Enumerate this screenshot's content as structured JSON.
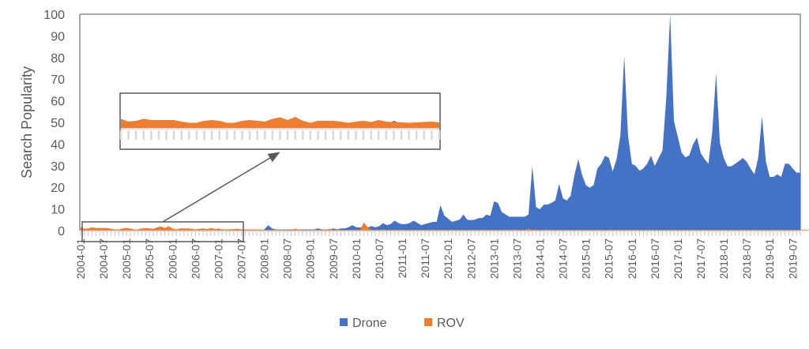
{
  "chart_data": {
    "type": "area",
    "ylabel": "Search Popularity",
    "xlabel": "",
    "ylim": [
      0,
      100
    ],
    "yticks": [
      0,
      10,
      20,
      30,
      40,
      50,
      60,
      70,
      80,
      90,
      100
    ],
    "x_start": "2004-01",
    "x_end": "2019-09",
    "x_interval": "monthly",
    "xtick_labels": [
      "2004-01",
      "2004-07",
      "2005-01",
      "2005-07",
      "2006-01",
      "2006-07",
      "2007-01",
      "2007-07",
      "2008-01",
      "2008-07",
      "2009-01",
      "2009-07",
      "2010-01",
      "2010-07",
      "2011-01",
      "2011-07",
      "2012-01",
      "2012-07",
      "2013-01",
      "2013-07",
      "2014-01",
      "2014-07",
      "2015-01",
      "2015-07",
      "2016-01",
      "2016-07",
      "2017-01",
      "2017-07",
      "2018-01",
      "2018-07",
      "2019-01",
      "2019-07"
    ],
    "legend_position": "bottom",
    "grid": false,
    "series": [
      {
        "name": "Drone",
        "color": "#4472C4",
        "values": [
          0,
          0,
          0,
          0,
          0,
          0,
          0,
          0,
          0,
          0,
          0,
          0,
          0,
          0,
          0,
          0,
          0,
          0,
          0,
          0,
          0,
          0,
          0,
          0,
          0,
          0,
          0,
          0,
          0,
          0,
          0,
          0,
          0,
          0,
          0,
          0,
          1,
          0.3,
          0,
          0,
          0,
          0,
          0,
          0,
          0,
          0,
          0,
          0,
          0.5,
          2.5,
          1,
          0.5,
          0.5,
          0.5,
          0.5,
          0.5,
          0.5,
          0.5,
          0.5,
          0.5,
          0.5,
          0.5,
          1,
          0.5,
          0.5,
          0.5,
          1,
          0.5,
          1,
          1,
          1.5,
          2.5,
          1.5,
          1.5,
          1.5,
          1.5,
          2,
          1.5,
          2,
          3.4,
          2.5,
          3,
          4.6,
          3.5,
          2.9,
          3,
          3.5,
          4.6,
          3.5,
          2.5,
          3,
          3.5,
          4,
          4,
          11.7,
          7,
          5.5,
          4,
          4.5,
          5,
          7.4,
          5,
          4.8,
          5,
          5.8,
          5.8,
          7.4,
          6.8,
          13.5,
          12.8,
          8.6,
          7.5,
          6.4,
          6.4,
          6.4,
          6.4,
          6.4,
          7.4,
          29.7,
          10.7,
          9.9,
          12,
          12,
          12.8,
          13.9,
          21.6,
          14.9,
          13.9,
          16.1,
          25.7,
          33,
          25.7,
          21,
          19.8,
          21,
          28.7,
          30.9,
          34.6,
          33.6,
          27.3,
          33,
          43.9,
          80.8,
          43.9,
          30.9,
          29.9,
          27.7,
          28.7,
          30.9,
          34.6,
          29.9,
          33.6,
          37,
          61.6,
          100,
          50.6,
          43.3,
          36,
          33.8,
          34.8,
          39.9,
          43,
          35.8,
          33,
          30.9,
          45.7,
          72.7,
          40.5,
          33.6,
          29.7,
          29.7,
          30.9,
          32.1,
          33.6,
          31.8,
          28.7,
          26,
          33.6,
          52.8,
          32.1,
          24.8,
          24.8,
          26,
          24.8,
          30.9,
          30.9,
          28.7,
          26.8,
          26.8
        ]
      },
      {
        "name": "ROV",
        "color": "#ED7D31",
        "values": [
          1.5,
          0.8,
          1,
          1.5,
          1.2,
          1.2,
          1.2,
          1.2,
          0.8,
          0.5,
          0.5,
          1,
          1.2,
          1,
          0.5,
          0.5,
          1,
          1.2,
          1,
          0.8,
          1.5,
          1.9,
          1.2,
          2,
          1,
          0.5,
          1,
          1,
          1,
          0.8,
          0.5,
          0.8,
          1,
          0.7,
          1.2,
          0.8,
          0.7,
          0.6,
          0.5,
          0.6,
          0.7,
          0.8,
          0.6,
          0.5,
          0.5,
          0.5,
          0.5,
          0.5,
          0.3,
          0.3,
          0.3,
          0.3,
          0.3,
          0.3,
          0.3,
          0.3,
          0.8,
          0.3,
          0.3,
          0.3,
          0.3,
          0.3,
          0.3,
          0.3,
          0.3,
          0.8,
          0.3,
          0.3,
          0.3,
          0.3,
          0.3,
          0.3,
          0.3,
          0.3,
          3.8,
          1.5,
          0.3,
          0.3,
          0.3,
          0.5,
          0.3,
          0.3,
          0.3,
          0.3,
          0.3,
          0.3,
          0.3,
          0.3,
          0.3,
          0.3,
          0.3,
          0.3,
          0.3,
          0.3,
          0.3,
          0.3,
          0.3,
          0.3,
          0.3,
          0.3,
          0.3,
          0.3,
          0.3,
          0.3,
          0.3,
          0.3,
          0.3,
          0.3,
          0.3,
          0.3,
          0.3,
          0.3,
          0.3,
          0.3,
          0.5,
          0.3,
          0.3,
          0.8,
          0.3,
          0.5,
          0.3,
          0.3,
          0.5,
          0.3,
          0.3,
          0.3,
          0.3,
          0.3,
          0.3,
          0.3,
          0.3,
          0.3,
          0.3,
          0.3,
          0.3,
          0.3,
          0.3,
          0.3,
          0.3,
          0.3,
          0.3,
          0.3,
          0.3,
          0.3,
          0.3,
          0.3,
          0.3,
          0.3,
          0.3,
          0.3,
          0.3,
          0.3,
          0.3,
          0.3,
          0.3,
          0.3,
          0.3,
          0.3,
          0.3,
          0.3,
          0.3,
          0.3,
          0.3,
          0.3,
          0.3,
          0.3,
          0.3,
          0.3,
          0.3,
          0.3,
          0.3,
          0.3,
          0.3,
          0.3,
          0.3,
          0.3,
          0.3,
          0.3,
          0.3,
          0.3,
          0.3,
          0.3,
          0.3,
          0.3,
          0.3,
          0.3,
          0.3,
          0.3,
          0.3,
          0.3,
          0.3
        ]
      }
    ]
  }
}
